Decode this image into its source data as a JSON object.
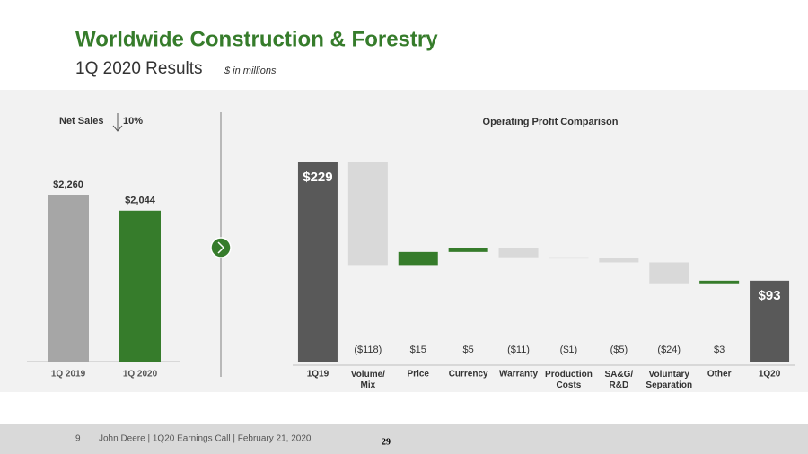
{
  "header": {
    "title": "Worldwide Construction & Forestry",
    "subtitle": "1Q 2020 Results",
    "unit_note": "$ in millions"
  },
  "chart_data": [
    {
      "type": "bar",
      "title": "Net Sales",
      "change_label": "10%",
      "categories": [
        "1Q 2019",
        "1Q 2020"
      ],
      "values": [
        2260,
        2044
      ],
      "value_labels": [
        "$2,260",
        "$2,044"
      ],
      "colors": [
        "#a6a6a6",
        "#367c2b"
      ]
    },
    {
      "type": "waterfall",
      "title": "Operating Profit Comparison",
      "categories": [
        "1Q19",
        "Volume/ Mix",
        "Price",
        "Currency",
        "Warranty",
        "Production Costs",
        "SA&G/ R&D",
        "Voluntary Separation",
        "Other",
        "1Q20"
      ],
      "values": [
        229,
        -118,
        15,
        5,
        -11,
        -1,
        -5,
        -24,
        3,
        93
      ],
      "value_labels": [
        "$229",
        "($118)",
        "$15",
        "$5",
        "($11)",
        "($1)",
        "($5)",
        "($24)",
        "$3",
        "$93"
      ],
      "colors": {
        "total": "#595959",
        "increase": "#367c2b",
        "decrease": "#d9d9d9"
      }
    }
  ],
  "footer": {
    "page_number": "9",
    "text": "John Deere | 1Q20 Earnings Call | February 21, 2020",
    "slide_number": "29"
  }
}
